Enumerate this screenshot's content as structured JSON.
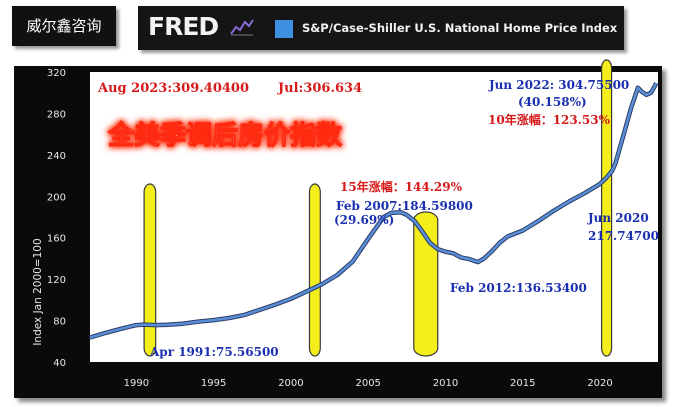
{
  "watermark_label": "威尔鑫咨询",
  "header": {
    "logo_text": "FRED",
    "logo_icon": "fred-sparkline-icon",
    "series_title": "S&P/Case-Shiller U.S. National Home Price Index",
    "series_color": "#3f8fe0"
  },
  "annotations": {
    "latest": "Aug 2023:309.40400",
    "jul": "Jul:306.634",
    "headline": "全美季调后房价指数",
    "peak_2022": "Jun 2022: 304.75500",
    "peak_2022_pct": "(40.158%)",
    "ten_year_rise": "10年涨幅：123.53%",
    "fifteen_year_rise": "15年涨幅：144.29%",
    "peak_2007": "Feb 2007:184.59800",
    "peak_2007_pct": "(29.69%)",
    "trough_2012": "Feb 2012:136.53400",
    "jun_2020_line1": "Jun 2020",
    "jun_2020_line2": "217.74700",
    "start_1991": "Apr 1991:75.56500"
  },
  "colors": {
    "line": "#5a8fd8",
    "recession_fill": "#f4ee1a",
    "annotation_red": "#d61a1a",
    "annotation_blue": "#1a2fb0",
    "headline_fill": "#ffffff",
    "headline_glow": "#ff2a10"
  },
  "chart_data": {
    "type": "line",
    "ylabel": "Index Jan 2000=100",
    "xlabel": "",
    "ylim": [
      40,
      320
    ],
    "xlim": [
      1987,
      2023.75
    ],
    "yticks": [
      40,
      80,
      120,
      160,
      200,
      240,
      280,
      320
    ],
    "xticks": [
      1990,
      1995,
      2000,
      2005,
      2010,
      2015,
      2020
    ],
    "grid": false,
    "recessions": [
      [
        1990.5,
        1991.25
      ],
      [
        2001.2,
        2001.9
      ],
      [
        2007.95,
        2009.5
      ],
      [
        2020.1,
        2020.4
      ]
    ],
    "series": [
      {
        "x": [
          1987.0,
          1988.0,
          1989.0,
          1990.0,
          1990.5,
          1991.25,
          1992.0,
          1993.0,
          1994.0,
          1995.0,
          1996.0,
          1997.0,
          1998.0,
          1999.0,
          2000.0,
          2001.0,
          2002.0,
          2003.0,
          2004.0,
          2005.0,
          2006.0,
          2006.5,
          2007.1,
          2007.5,
          2008.0,
          2008.5,
          2009.0,
          2009.5,
          2010.0,
          2010.5,
          2011.0,
          2011.5,
          2012.1,
          2012.5,
          2013.0,
          2013.5,
          2014.0,
          2015.0,
          2016.0,
          2017.0,
          2018.0,
          2019.0,
          2020.0,
          2020.4,
          2020.8,
          2021.0,
          2021.5,
          2022.0,
          2022.45,
          2022.7,
          2023.0,
          2023.3,
          2023.55,
          2023.63
        ],
        "values": [
          63.7,
          68.1,
          72.1,
          75.6,
          76.1,
          75.6,
          76.0,
          77.0,
          79.0,
          80.5,
          82.5,
          85.5,
          90.5,
          95.5,
          101.0,
          108.0,
          115.0,
          124.0,
          137.0,
          159.0,
          180.0,
          184.0,
          184.6,
          182.0,
          176.0,
          166.0,
          155.0,
          149.0,
          146.5,
          145.0,
          141.0,
          139.5,
          136.5,
          140.0,
          147.0,
          155.0,
          161.0,
          167.0,
          176.0,
          186.0,
          195.0,
          203.0,
          212.0,
          217.7,
          225.0,
          232.0,
          258.0,
          285.0,
          304.8,
          301.0,
          298.0,
          300.0,
          306.6,
          309.4
        ]
      }
    ]
  }
}
